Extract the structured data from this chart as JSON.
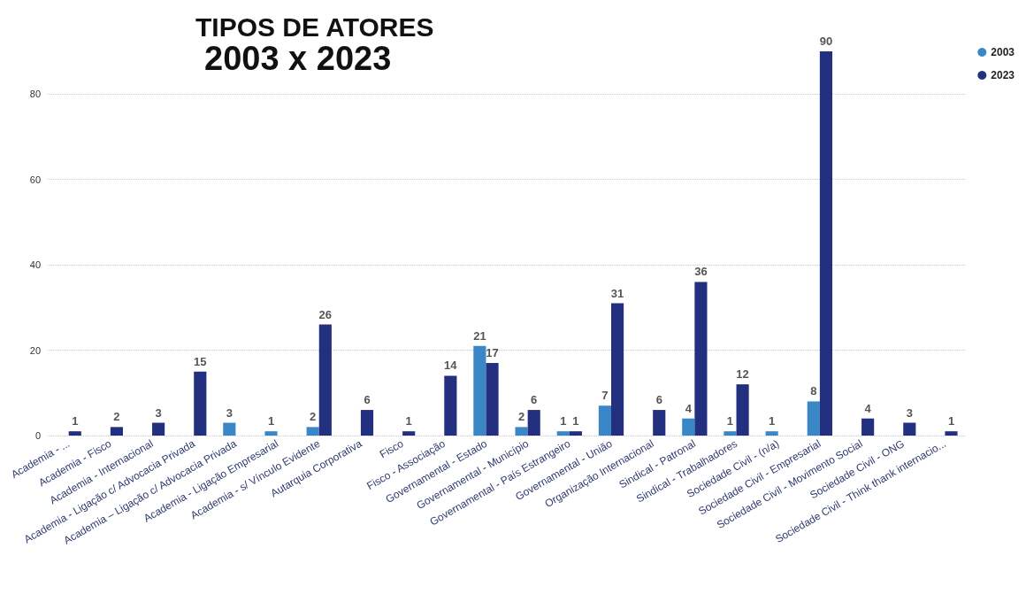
{
  "chart_data": {
    "type": "bar",
    "title": "TIPOS DE ATORES",
    "subtitle": "2003 x 2023",
    "categories": [
      "Academia - ...",
      "Academia - Fisco",
      "Academia - Internacional",
      "Academia - Ligação c/ Advocacia Privada",
      "Academia – Ligação c/ Advocacia Privada",
      "Academia - Ligação Empresarial",
      "Academia - s/ Vínculo Evidente",
      "Autarquia Corporativa",
      "Fisco",
      "Fisco - Associação",
      "Governamental - Estado",
      "Governamental - Município",
      "Governamental - País Estrangeiro",
      "Governamental - União",
      "Organização Internacional",
      "Sindical - Patronal",
      "Sindical - Trabalhadores",
      "Sociedade Civil - (n/a)",
      "Sociedade Civil - Empresarial",
      "Sociedade Civil - Movimento Social",
      "Sociedade Civil - ONG",
      "Sociedade Civil - Think thank internacio..."
    ],
    "series": [
      {
        "name": "2003",
        "color": "#3a87c8",
        "values": [
          null,
          null,
          null,
          null,
          3,
          1,
          2,
          null,
          null,
          null,
          21,
          2,
          1,
          7,
          null,
          4,
          1,
          1,
          8,
          null,
          null,
          null
        ]
      },
      {
        "name": "2023",
        "color": "#232f7f",
        "values": [
          1,
          2,
          3,
          15,
          null,
          null,
          26,
          6,
          1,
          14,
          17,
          6,
          1,
          31,
          6,
          36,
          12,
          null,
          90,
          4,
          3,
          1
        ]
      }
    ],
    "ylim": [
      0,
      90
    ],
    "yticks": [
      0,
      20,
      40,
      60,
      80
    ],
    "grid": "y",
    "legend": "top right",
    "data_labels": true
  }
}
